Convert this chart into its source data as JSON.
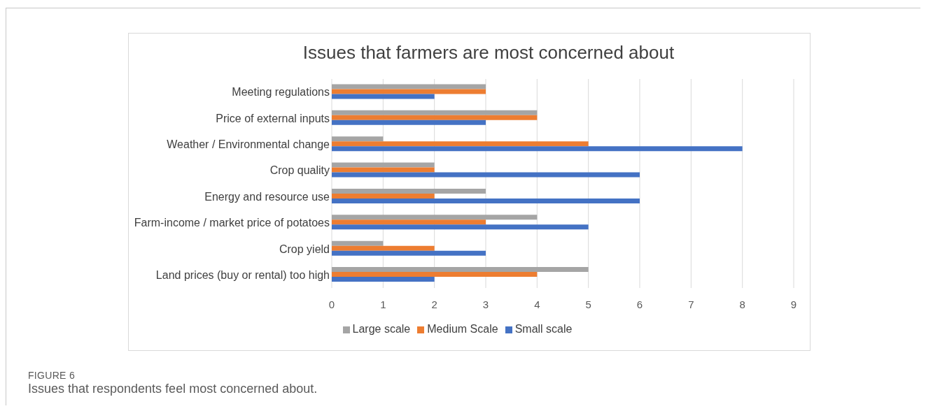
{
  "chart_data": {
    "type": "bar",
    "orientation": "horizontal",
    "title": "Issues that farmers are most concerned about",
    "categories": [
      "Meeting regulations",
      "Price of external inputs",
      "Weather / Environmental change",
      "Crop quality",
      "Energy and resource use",
      "Farm-income / market price of potatoes",
      "Crop yield",
      "Land prices (buy or rental) too high"
    ],
    "series": [
      {
        "name": "Large scale",
        "color": "#a5a5a5",
        "values": [
          3,
          4,
          1,
          2,
          3,
          4,
          1,
          5
        ]
      },
      {
        "name": "Medium Scale",
        "color": "#ed7d31",
        "values": [
          3,
          4,
          5,
          2,
          2,
          3,
          2,
          4
        ]
      },
      {
        "name": "Small scale",
        "color": "#4472c4",
        "values": [
          2,
          3,
          8,
          6,
          6,
          5,
          3,
          2
        ]
      }
    ],
    "xlim": [
      0,
      9
    ],
    "xticks": [
      0,
      1,
      2,
      3,
      4,
      5,
      6,
      7,
      8,
      9
    ],
    "grid": "x",
    "legend": "bottom",
    "annotations": [
      "FIGURE 6",
      "Issues that respondents feel most concerned about."
    ]
  }
}
